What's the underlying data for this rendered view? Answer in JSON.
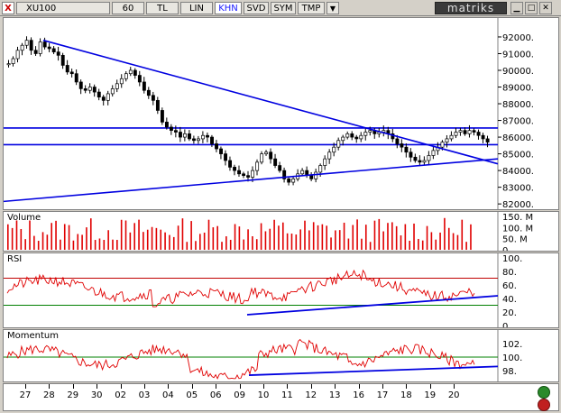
{
  "toolbar": {
    "symbol": "XU100",
    "period": "60",
    "buttons": [
      "TL",
      "LIN",
      "KHN",
      "SVD",
      "SYM",
      "TMP"
    ],
    "active": "KHN",
    "logo": "matriks",
    "close_glyph": "X",
    "dropdown_glyph": "▼"
  },
  "price": {
    "axis_ticks": [
      "92000.",
      "91000.",
      "90000.",
      "89000.",
      "88000.",
      "87000.",
      "86000.",
      "85000.",
      "84000.",
      "83000.",
      "82000."
    ],
    "tick_values": [
      92000,
      91000,
      90000,
      89000,
      88000,
      87000,
      86000,
      85000,
      84000,
      83000,
      82000
    ],
    "ylim": [
      81900,
      92700
    ],
    "hlines": [
      86550,
      85550
    ],
    "candles": [
      90400,
      90700,
      91200,
      91500,
      91800,
      91200,
      91000,
      91700,
      91400,
      91300,
      91100,
      90900,
      90300,
      89900,
      89800,
      89300,
      88900,
      88800,
      89000,
      88700,
      88400,
      88200,
      88600,
      88900,
      89200,
      89500,
      89800,
      90000,
      89700,
      89300,
      88800,
      88500,
      88200,
      87600,
      86900,
      86600,
      86400,
      86300,
      86000,
      86200,
      85900,
      85800,
      85900,
      86100,
      86000,
      85600,
      85300,
      85000,
      84600,
      84200,
      84000,
      83800,
      83700,
      83600,
      84000,
      84500,
      85000,
      85100,
      84700,
      84300,
      84000,
      83500,
      83300,
      83500,
      83800,
      84000,
      83700,
      83500,
      83900,
      84300,
      84700,
      85100,
      85400,
      85800,
      86000,
      86200,
      86000,
      85900,
      86100,
      86300,
      86400,
      86200,
      86300,
      86400,
      86200,
      85900,
      85600,
      85400,
      85100,
      84800,
      84600,
      84500,
      84600,
      84900,
      85200,
      85400,
      85700,
      85900,
      86100,
      86300,
      86400,
      86200,
      86400,
      86300,
      86100,
      85900,
      85700
    ]
  },
  "volume": {
    "title": "Volume",
    "axis_ticks": [
      "150. M",
      "100. M",
      "50. M",
      "0"
    ],
    "tick_values": [
      150,
      100,
      50,
      0
    ],
    "ymax": 155
  },
  "rsi": {
    "title": "RSI",
    "axis_ticks": [
      "100.",
      "80.",
      "60.",
      "40.",
      "20.",
      "0"
    ],
    "tick_values": [
      100,
      80,
      60,
      40,
      20,
      0
    ],
    "levels": [
      70,
      30
    ]
  },
  "momentum": {
    "title": "Momentum",
    "axis_ticks": [
      "102.",
      "100.",
      "98."
    ],
    "tick_values": [
      102,
      100,
      98
    ],
    "ylim": [
      96.5,
      103.5
    ],
    "level": 100
  },
  "dates": [
    "27",
    "28",
    "29",
    "30",
    "02",
    "03",
    "04",
    "05",
    "06",
    "09",
    "10",
    "11",
    "12",
    "13",
    "16",
    "17",
    "18",
    "19",
    "20"
  ],
  "colors": {
    "trend": "#0000e0",
    "series": "#e00000",
    "level_high": "#c00000",
    "level_low": "#008000",
    "candle": "#000000"
  }
}
